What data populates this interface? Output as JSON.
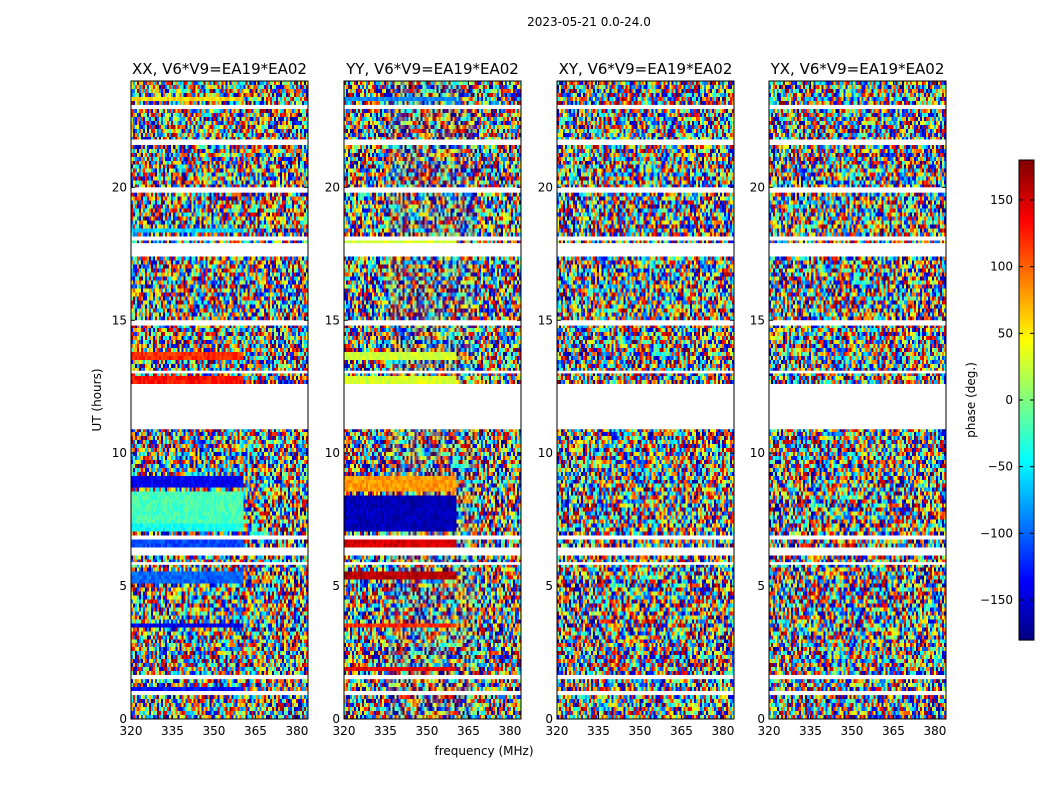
{
  "chart_data": {
    "type": "heatmap",
    "suptitle": "2023-05-21 0.0-24.0",
    "xlabel": "frequency (MHz)",
    "ylabel": "UT (hours)",
    "xlim": [
      320,
      384
    ],
    "ylim": [
      0,
      24
    ],
    "xticks": [
      320,
      335,
      350,
      365,
      380
    ],
    "yticks": [
      0,
      5,
      10,
      15,
      20
    ],
    "colormap": "jet",
    "colorbar": {
      "label": "phase (deg.)",
      "range": [
        -180,
        180
      ],
      "ticks": [
        -150,
        -100,
        -50,
        0,
        50,
        100,
        150
      ],
      "tick_labels": [
        "−150",
        "−100",
        "−50",
        "0",
        "50",
        "100",
        "150"
      ],
      "colors": [
        "#00007f",
        "#0000ff",
        "#007fff",
        "#00ffff",
        "#7fff7f",
        "#ffff00",
        "#ff7f00",
        "#ff0000",
        "#7f0000"
      ]
    },
    "panels": [
      {
        "title": "XX, V6*V9=EA19*EA02",
        "pol": "XX",
        "flagged_hours": [
          [
            0.9,
            1.0
          ],
          [
            1.5,
            1.6
          ],
          [
            5.8,
            5.9
          ],
          [
            6.2,
            6.4
          ],
          [
            6.8,
            6.9
          ],
          [
            10.9,
            12.6
          ],
          [
            13.0,
            13.1
          ],
          [
            14.8,
            15.0
          ],
          [
            17.4,
            17.9
          ],
          [
            18.0,
            18.1
          ],
          [
            19.8,
            20.0
          ],
          [
            21.6,
            21.8
          ],
          [
            23.0,
            23.1
          ]
        ],
        "coherent_bands": [
          {
            "t": [
              0.85,
              1.15
            ],
            "phase": -130
          },
          {
            "t": [
              3.45,
              3.6
            ],
            "phase": -140
          },
          {
            "t": [
              5.1,
              5.5
            ],
            "phase": -100
          },
          {
            "t": [
              6.5,
              6.7
            ],
            "phase": -110
          },
          {
            "t": [
              7.1,
              7.4
            ],
            "phase": -40
          },
          {
            "t": [
              7.4,
              8.6
            ],
            "phase": -20
          },
          {
            "t": [
              8.7,
              9.2
            ],
            "phase": -140
          },
          {
            "t": [
              12.6,
              12.9
            ],
            "phase": 130
          },
          {
            "t": [
              13.5,
              13.8
            ],
            "phase": 120
          },
          {
            "t": [
              14.8,
              14.9
            ],
            "phase": 175
          },
          {
            "t": [
              18.3,
              18.5
            ],
            "phase": -60
          },
          {
            "t": [
              23.2,
              23.4
            ],
            "phase": 60
          }
        ]
      },
      {
        "title": "YY, V6*V9=EA19*EA02",
        "pol": "YY",
        "flagged_hours": [
          [
            0.9,
            1.0
          ],
          [
            1.5,
            1.6
          ],
          [
            5.8,
            5.9
          ],
          [
            6.2,
            6.4
          ],
          [
            6.8,
            6.9
          ],
          [
            10.9,
            12.6
          ],
          [
            13.0,
            13.1
          ],
          [
            14.8,
            15.0
          ],
          [
            17.4,
            17.9
          ],
          [
            18.0,
            18.1
          ],
          [
            19.8,
            20.0
          ],
          [
            21.6,
            21.8
          ],
          [
            23.0,
            23.1
          ]
        ],
        "coherent_bands": [
          {
            "t": [
              0.85,
              1.05
            ],
            "phase": 70
          },
          {
            "t": [
              1.8,
              2.0
            ],
            "phase": 140
          },
          {
            "t": [
              3.45,
              3.6
            ],
            "phase": 120
          },
          {
            "t": [
              5.2,
              5.6
            ],
            "phase": 160
          },
          {
            "t": [
              6.5,
              6.8
            ],
            "phase": 150
          },
          {
            "t": [
              7.1,
              8.4
            ],
            "phase": -160
          },
          {
            "t": [
              8.6,
              9.2
            ],
            "phase": 80
          },
          {
            "t": [
              12.6,
              12.9
            ],
            "phase": 30
          },
          {
            "t": [
              13.5,
              13.8
            ],
            "phase": 30
          },
          {
            "t": [
              14.8,
              14.9
            ],
            "phase": 175
          },
          {
            "t": [
              17.9,
              18.1
            ],
            "phase": 30
          },
          {
            "t": [
              23.2,
              23.4
            ],
            "phase": -90
          }
        ]
      },
      {
        "title": "XY, V6*V9=EA19*EA02",
        "pol": "XY",
        "flagged_hours": [
          [
            0.9,
            1.0
          ],
          [
            1.5,
            1.6
          ],
          [
            5.8,
            5.9
          ],
          [
            6.2,
            6.4
          ],
          [
            6.8,
            6.9
          ],
          [
            10.9,
            12.6
          ],
          [
            13.0,
            13.1
          ],
          [
            14.8,
            15.0
          ],
          [
            17.4,
            17.9
          ],
          [
            18.0,
            18.1
          ],
          [
            19.8,
            20.0
          ],
          [
            21.6,
            21.8
          ],
          [
            23.0,
            23.1
          ]
        ],
        "coherent_bands": [
          {
            "t": [
              14.8,
              14.9
            ],
            "phase": 175
          }
        ]
      },
      {
        "title": "YX, V6*V9=EA19*EA02",
        "pol": "YX",
        "flagged_hours": [
          [
            0.9,
            1.0
          ],
          [
            1.5,
            1.6
          ],
          [
            5.8,
            5.9
          ],
          [
            6.2,
            6.4
          ],
          [
            6.8,
            6.9
          ],
          [
            10.9,
            12.6
          ],
          [
            13.0,
            13.1
          ],
          [
            14.8,
            15.0
          ],
          [
            17.4,
            17.9
          ],
          [
            18.0,
            18.1
          ],
          [
            19.8,
            20.0
          ],
          [
            21.6,
            21.8
          ],
          [
            23.0,
            23.1
          ]
        ],
        "coherent_bands": [
          {
            "t": [
              14.8,
              14.9
            ],
            "phase": 175
          }
        ]
      }
    ]
  }
}
